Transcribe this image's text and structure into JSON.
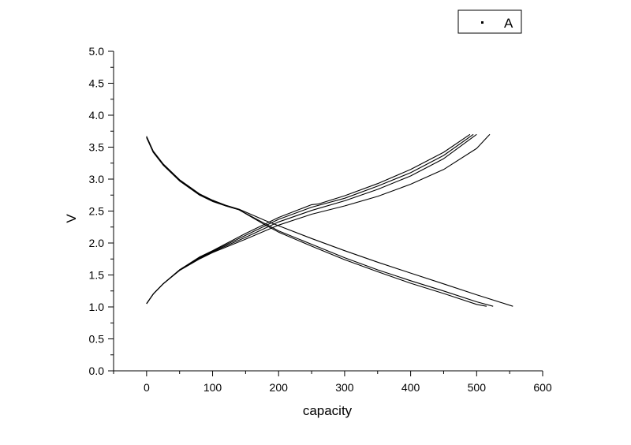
{
  "chart_data": {
    "type": "line",
    "xlabel": "capacity",
    "ylabel": "V",
    "xlim": [
      -50,
      600
    ],
    "ylim": [
      0.0,
      5.0
    ],
    "x_ticks": [
      "0",
      "100",
      "200",
      "300",
      "400",
      "500",
      "600"
    ],
    "y_ticks": [
      "0.0",
      "0.5",
      "1.0",
      "1.5",
      "2.0",
      "2.5",
      "3.0",
      "3.5",
      "4.0",
      "4.5",
      "5.0"
    ],
    "grid": false,
    "legend": {
      "position": "top-right",
      "entries": [
        "A"
      ]
    },
    "series": [
      {
        "part": "discharge",
        "x": [
          0,
          10,
          25,
          50,
          80,
          100,
          120,
          140,
          160,
          180,
          200,
          250,
          300,
          350,
          400,
          450,
          500,
          515
        ],
        "y": [
          3.65,
          3.42,
          3.22,
          2.97,
          2.75,
          2.65,
          2.58,
          2.52,
          2.4,
          2.28,
          2.17,
          1.95,
          1.74,
          1.55,
          1.37,
          1.21,
          1.04,
          1.01
        ]
      },
      {
        "part": "discharge",
        "x": [
          0,
          10,
          25,
          50,
          80,
          100,
          120,
          140,
          160,
          180,
          200,
          250,
          300,
          350,
          400,
          450,
          500,
          525
        ],
        "y": [
          3.66,
          3.43,
          3.23,
          2.98,
          2.76,
          2.66,
          2.58,
          2.52,
          2.41,
          2.3,
          2.19,
          1.98,
          1.77,
          1.58,
          1.41,
          1.25,
          1.08,
          1.01
        ]
      },
      {
        "part": "discharge",
        "x": [
          0,
          10,
          25,
          50,
          80,
          100,
          120,
          140,
          160,
          180,
          200,
          250,
          300,
          350,
          400,
          450,
          500,
          555
        ],
        "y": [
          3.67,
          3.44,
          3.24,
          2.99,
          2.77,
          2.67,
          2.59,
          2.53,
          2.44,
          2.35,
          2.27,
          2.07,
          1.88,
          1.7,
          1.53,
          1.36,
          1.19,
          1.01
        ]
      },
      {
        "part": "charge",
        "x": [
          0,
          10,
          25,
          50,
          80,
          100,
          150,
          200,
          250,
          260,
          300,
          350,
          400,
          450,
          490
        ],
        "y": [
          1.05,
          1.2,
          1.36,
          1.58,
          1.78,
          1.88,
          2.15,
          2.4,
          2.6,
          2.61,
          2.74,
          2.93,
          3.15,
          3.42,
          3.7
        ]
      },
      {
        "part": "charge",
        "x": [
          0,
          10,
          25,
          50,
          80,
          100,
          150,
          200,
          250,
          300,
          350,
          400,
          450,
          495
        ],
        "y": [
          1.05,
          1.2,
          1.36,
          1.58,
          1.77,
          1.87,
          2.12,
          2.37,
          2.56,
          2.7,
          2.89,
          3.1,
          3.37,
          3.7
        ]
      },
      {
        "part": "charge",
        "x": [
          0,
          10,
          25,
          50,
          80,
          100,
          150,
          200,
          250,
          300,
          350,
          400,
          450,
          500
        ],
        "y": [
          1.05,
          1.2,
          1.36,
          1.58,
          1.76,
          1.86,
          2.09,
          2.33,
          2.51,
          2.66,
          2.84,
          3.05,
          3.32,
          3.7
        ]
      },
      {
        "part": "charge",
        "x": [
          0,
          10,
          25,
          50,
          80,
          100,
          150,
          200,
          250,
          300,
          350,
          400,
          450,
          500,
          520
        ],
        "y": [
          1.05,
          1.2,
          1.36,
          1.57,
          1.75,
          1.85,
          2.06,
          2.28,
          2.45,
          2.58,
          2.73,
          2.92,
          3.15,
          3.48,
          3.7
        ]
      }
    ]
  }
}
